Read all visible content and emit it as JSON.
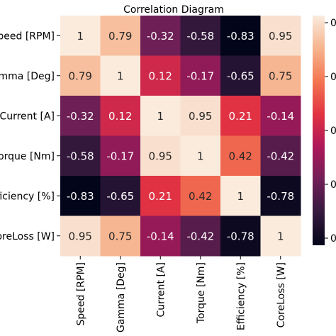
{
  "chart_data": {
    "type": "heatmap",
    "title": "Correlation Diagram",
    "row_labels": [
      "Speed [RPM]",
      "Gamma [Deg]",
      "Current [A]",
      "Torque [Nm]",
      "Efficiency [%]",
      "CoreLoss [W]"
    ],
    "col_labels": [
      "Speed [RPM]",
      "Gamma [Deg]",
      "Current [A]",
      "Torque [Nm]",
      "Efficiency [%]",
      "CoreLoss [W]"
    ],
    "values": [
      [
        1,
        0.79,
        -0.32,
        -0.58,
        -0.83,
        0.95
      ],
      [
        0.79,
        1,
        0.12,
        -0.17,
        -0.65,
        0.75
      ],
      [
        -0.32,
        0.12,
        1,
        0.95,
        0.21,
        -0.14
      ],
      [
        -0.58,
        -0.17,
        0.95,
        1,
        0.42,
        -0.42
      ],
      [
        -0.83,
        -0.65,
        0.21,
        0.42,
        1,
        -0.78
      ],
      [
        0.95,
        0.75,
        -0.14,
        -0.42,
        -0.78,
        1
      ]
    ],
    "value_range": [
      -0.83,
      1
    ],
    "colormap": "rocket",
    "colormap_stops": [
      "#03051a",
      "#35193e",
      "#701f57",
      "#ad1759",
      "#e13342",
      "#f37651",
      "#f6b48e",
      "#faebdd"
    ],
    "colorbar_ticks": [
      "0",
      "0",
      "0",
      "0",
      "0"
    ],
    "text_colors": {
      "light": "#ffffff",
      "dark": "#262626"
    }
  }
}
